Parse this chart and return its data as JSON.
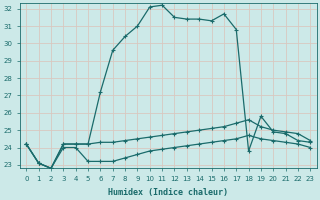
{
  "xlabel": "Humidex (Indice chaleur)",
  "ylabel": "",
  "xlim": [
    -0.5,
    23.5
  ],
  "ylim": [
    22.8,
    32.3
  ],
  "yticks": [
    23,
    24,
    25,
    26,
    27,
    28,
    29,
    30,
    31,
    32
  ],
  "xticks": [
    0,
    1,
    2,
    3,
    4,
    5,
    6,
    7,
    8,
    9,
    10,
    11,
    12,
    13,
    14,
    15,
    16,
    17,
    18,
    19,
    20,
    21,
    22,
    23
  ],
  "bg_color": "#cce9e8",
  "line_color": "#1a6b6b",
  "grid_color": "#d9c8c0",
  "line_hump_x": [
    0,
    1,
    2,
    3,
    4,
    5,
    6,
    7,
    8,
    9,
    10,
    11,
    12,
    13,
    14,
    15,
    16,
    17,
    18,
    19,
    20,
    21,
    22,
    23
  ],
  "line_hump_y": [
    24.2,
    23.1,
    22.8,
    24.2,
    24.2,
    24.2,
    27.2,
    29.6,
    30.4,
    31.0,
    32.1,
    32.2,
    31.5,
    31.4,
    31.4,
    31.3,
    31.7,
    30.8,
    23.8,
    25.8,
    24.9,
    24.8,
    24.4,
    24.3
  ],
  "line_mid_x": [
    0,
    1,
    2,
    3,
    4,
    5,
    6,
    7,
    8,
    9,
    10,
    11,
    12,
    13,
    14,
    15,
    16,
    17,
    18,
    19,
    20,
    21,
    22,
    23
  ],
  "line_mid_y": [
    24.2,
    23.1,
    22.8,
    24.2,
    24.2,
    24.2,
    24.3,
    24.3,
    24.4,
    24.5,
    24.6,
    24.7,
    24.8,
    24.9,
    25.0,
    25.1,
    25.2,
    25.4,
    25.6,
    25.2,
    25.0,
    24.9,
    24.8,
    24.4
  ],
  "line_low_x": [
    0,
    1,
    2,
    3,
    4,
    5,
    6,
    7,
    8,
    9,
    10,
    11,
    12,
    13,
    14,
    15,
    16,
    17,
    18,
    19,
    20,
    21,
    22,
    23
  ],
  "line_low_y": [
    24.2,
    23.1,
    22.8,
    24.0,
    24.0,
    23.2,
    23.2,
    23.2,
    23.4,
    23.6,
    23.8,
    23.9,
    24.0,
    24.1,
    24.2,
    24.3,
    24.4,
    24.5,
    24.7,
    24.5,
    24.4,
    24.3,
    24.2,
    24.0
  ]
}
